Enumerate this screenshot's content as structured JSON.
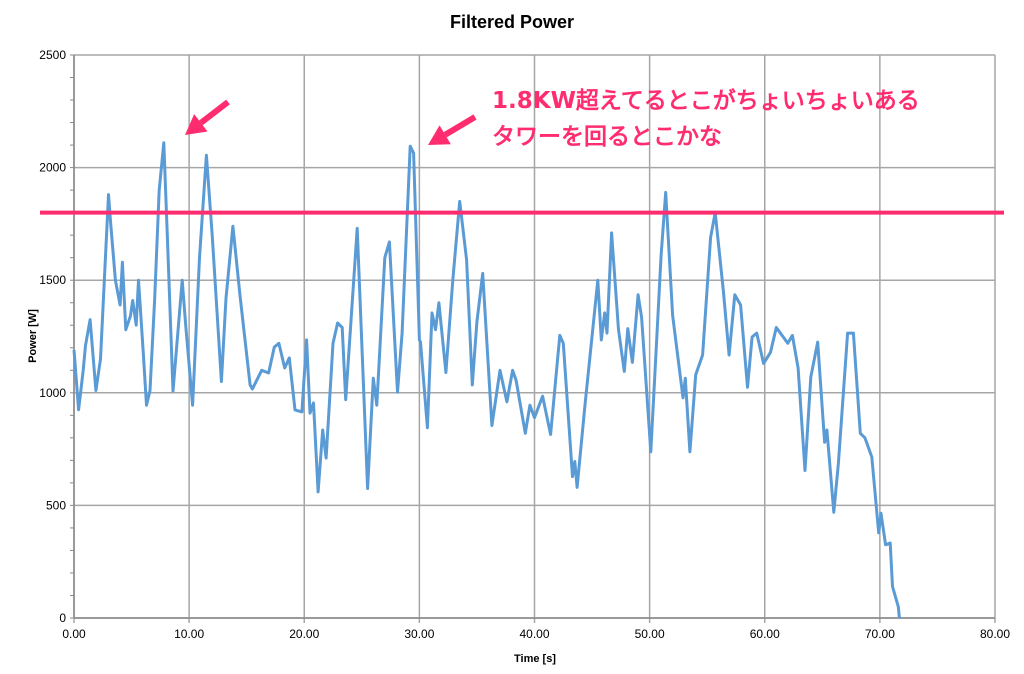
{
  "chart_data": {
    "type": "line",
    "title": "Filtered Power",
    "xlabel": "Time [s]",
    "ylabel": "Power [W]",
    "xlim": [
      0,
      80
    ],
    "ylim": [
      0,
      2500
    ],
    "x_ticks": [
      "0.00",
      "10.00",
      "20.00",
      "30.00",
      "40.00",
      "50.00",
      "60.00",
      "70.00",
      "80.00"
    ],
    "y_ticks": [
      "0",
      "500",
      "1000",
      "1500",
      "2000",
      "2500"
    ],
    "grid": true,
    "legend": "none",
    "series": [
      {
        "color": "#5b9bd5",
        "points": [
          [
            0,
            1190
          ],
          [
            0.4,
            925
          ],
          [
            0.8,
            1100
          ],
          [
            1.0,
            1210
          ],
          [
            1.4,
            1325
          ],
          [
            1.9,
            1010
          ],
          [
            2.3,
            1150
          ],
          [
            2.6,
            1460
          ],
          [
            3.0,
            1880
          ],
          [
            3.2,
            1745
          ],
          [
            3.6,
            1500
          ],
          [
            4.0,
            1390
          ],
          [
            4.2,
            1580
          ],
          [
            4.5,
            1280
          ],
          [
            4.9,
            1340
          ],
          [
            5.1,
            1410
          ],
          [
            5.4,
            1300
          ],
          [
            5.6,
            1500
          ],
          [
            6.0,
            1190
          ],
          [
            6.3,
            945
          ],
          [
            6.6,
            1010
          ],
          [
            7.0,
            1410
          ],
          [
            7.4,
            1900
          ],
          [
            7.8,
            2110
          ],
          [
            8.1,
            1700
          ],
          [
            8.6,
            1008
          ],
          [
            9.4,
            1500
          ],
          [
            9.7,
            1300
          ],
          [
            10.3,
            945
          ],
          [
            10.9,
            1600
          ],
          [
            11.5,
            2055
          ],
          [
            12.0,
            1700
          ],
          [
            12.8,
            1050
          ],
          [
            13.2,
            1420
          ],
          [
            13.8,
            1740
          ],
          [
            14.4,
            1440
          ],
          [
            15.3,
            1035
          ],
          [
            15.5,
            1017
          ],
          [
            16.3,
            1100
          ],
          [
            16.9,
            1088
          ],
          [
            17.4,
            1203
          ],
          [
            17.8,
            1220
          ],
          [
            18.3,
            1110
          ],
          [
            18.7,
            1155
          ],
          [
            19.2,
            924
          ],
          [
            19.8,
            915
          ],
          [
            20.2,
            1235
          ],
          [
            20.5,
            910
          ],
          [
            20.8,
            955
          ],
          [
            21.2,
            560
          ],
          [
            21.6,
            835
          ],
          [
            21.9,
            710
          ],
          [
            22.5,
            1220
          ],
          [
            22.9,
            1310
          ],
          [
            23.3,
            1290
          ],
          [
            23.6,
            970
          ],
          [
            24.6,
            1730
          ],
          [
            25.5,
            575
          ],
          [
            26.0,
            1065
          ],
          [
            26.3,
            945
          ],
          [
            27.0,
            1600
          ],
          [
            27.4,
            1670
          ],
          [
            28.1,
            1003
          ],
          [
            28.5,
            1265
          ],
          [
            29.2,
            2095
          ],
          [
            29.5,
            2065
          ],
          [
            30.0,
            1235
          ],
          [
            30.1,
            1225
          ],
          [
            30.7,
            845
          ],
          [
            31.1,
            1355
          ],
          [
            31.4,
            1280
          ],
          [
            31.7,
            1400
          ],
          [
            32.3,
            1090
          ],
          [
            32.9,
            1500
          ],
          [
            33.5,
            1850
          ],
          [
            34.1,
            1590
          ],
          [
            34.6,
            1035
          ],
          [
            35.0,
            1315
          ],
          [
            35.5,
            1530
          ],
          [
            36.3,
            855
          ],
          [
            37.0,
            1100
          ],
          [
            37.6,
            960
          ],
          [
            38.1,
            1100
          ],
          [
            38.4,
            1055
          ],
          [
            39.2,
            820
          ],
          [
            39.6,
            945
          ],
          [
            40.0,
            890
          ],
          [
            40.7,
            985
          ],
          [
            41.4,
            815
          ],
          [
            42.2,
            1255
          ],
          [
            42.5,
            1220
          ],
          [
            43.3,
            628
          ],
          [
            43.5,
            695
          ],
          [
            43.7,
            580
          ],
          [
            44.4,
            955
          ],
          [
            45.5,
            1500
          ],
          [
            45.8,
            1235
          ],
          [
            46.1,
            1355
          ],
          [
            46.3,
            1265
          ],
          [
            46.7,
            1710
          ],
          [
            47.3,
            1280
          ],
          [
            47.8,
            1095
          ],
          [
            48.1,
            1285
          ],
          [
            48.5,
            1135
          ],
          [
            49.0,
            1435
          ],
          [
            49.3,
            1335
          ],
          [
            50.1,
            738
          ],
          [
            51.0,
            1610
          ],
          [
            51.4,
            1890
          ],
          [
            52.0,
            1345
          ],
          [
            52.9,
            978
          ],
          [
            53.1,
            1065
          ],
          [
            53.5,
            738
          ],
          [
            54.0,
            1080
          ],
          [
            54.6,
            1168
          ],
          [
            55.3,
            1690
          ],
          [
            55.7,
            1800
          ],
          [
            56.4,
            1455
          ],
          [
            56.9,
            1168
          ],
          [
            57.4,
            1435
          ],
          [
            57.9,
            1390
          ],
          [
            58.5,
            1025
          ],
          [
            58.9,
            1248
          ],
          [
            59.3,
            1265
          ],
          [
            59.9,
            1130
          ],
          [
            60.5,
            1180
          ],
          [
            61.0,
            1290
          ],
          [
            62.0,
            1220
          ],
          [
            62.4,
            1255
          ],
          [
            62.9,
            1110
          ],
          [
            63.5,
            655
          ],
          [
            64.0,
            1070
          ],
          [
            64.6,
            1225
          ],
          [
            65.2,
            780
          ],
          [
            65.4,
            835
          ],
          [
            66.0,
            470
          ],
          [
            66.4,
            688
          ],
          [
            67.2,
            1265
          ],
          [
            67.7,
            1265
          ],
          [
            68.3,
            820
          ],
          [
            68.7,
            800
          ],
          [
            69.3,
            715
          ],
          [
            69.9,
            378
          ],
          [
            70.1,
            465
          ],
          [
            70.5,
            325
          ],
          [
            70.9,
            333
          ],
          [
            71.1,
            140
          ],
          [
            71.6,
            50
          ],
          [
            71.7,
            0
          ]
        ]
      }
    ],
    "reference_line": {
      "y": 1800,
      "color": "#ff2d6f"
    },
    "annotations": {
      "lines": [
        "1.8KW超えてるとこがちょいちょいある",
        "タワーを回るとこかな"
      ],
      "color": "#ff2d6f"
    }
  }
}
